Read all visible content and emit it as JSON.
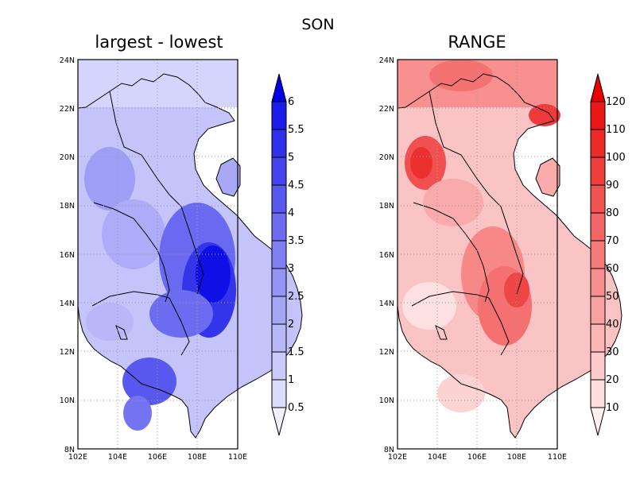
{
  "figure_title": "SON",
  "panels": [
    {
      "title": "largest - lowest",
      "lon_ticks": [
        "102E",
        "104E",
        "106E",
        "108E",
        "110E"
      ],
      "lat_ticks": [
        "8N",
        "10N",
        "12N",
        "14N",
        "16N",
        "18N",
        "20N",
        "22N",
        "24N"
      ],
      "colorbar_labels": [
        "0.5",
        "1",
        "1.5",
        "2",
        "2.5",
        "3",
        "3.5",
        "4",
        "4.5",
        "5",
        "5.5",
        "6"
      ],
      "colors": [
        "#f0f0ff",
        "#dcdcfd",
        "#cacafb",
        "#b8b8f9",
        "#a6a6f7",
        "#9494f5",
        "#8080f3",
        "#6c6cf1",
        "#5858ef",
        "#4444ed",
        "#3030ea",
        "#1c1ce8",
        "#0000e6"
      ]
    },
    {
      "title": "RANGE",
      "lon_ticks": [
        "102E",
        "104E",
        "106E",
        "108E",
        "110E"
      ],
      "lat_ticks": [
        "8N",
        "10N",
        "12N",
        "14N",
        "16N",
        "18N",
        "20N",
        "22N",
        "24N"
      ],
      "colorbar_labels": [
        "10",
        "20",
        "30",
        "40",
        "50",
        "60",
        "70",
        "80",
        "90",
        "100",
        "110",
        "120"
      ],
      "colors": [
        "#fff0f0",
        "#ffdede",
        "#fdcaca",
        "#fbb6b6",
        "#f9a2a2",
        "#f78e8e",
        "#f57a7a",
        "#f36666",
        "#f15252",
        "#ef3e3e",
        "#ed2a2a",
        "#eb1616",
        "#e80000"
      ]
    }
  ],
  "map_extent": {
    "lon": [
      102,
      110
    ],
    "lat": [
      8,
      24
    ]
  }
}
